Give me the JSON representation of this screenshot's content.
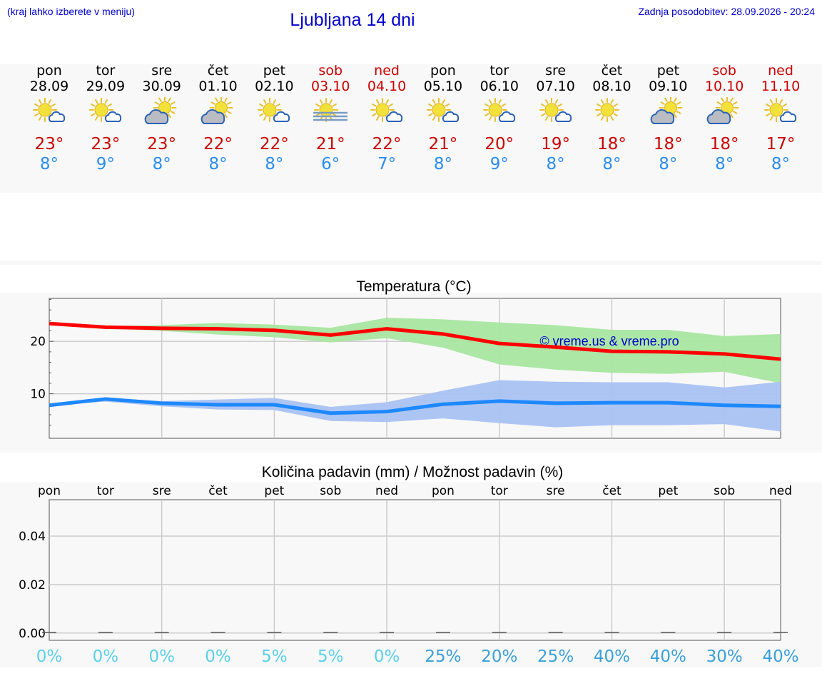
{
  "header": {
    "menu_hint": "(kraj lahko izberete v meniju)",
    "title": "Ljubljana 14 dni",
    "last_update": "Zadnja posodobitev: 28.09.2026 - 20:24"
  },
  "colors": {
    "link_blue": "#0000cc",
    "weekend_red": "#cc0000",
    "tmax_red": "#cc0000",
    "tmin_blue": "#2a8cf0",
    "max_line": "#ff0000",
    "min_line": "#1e88ff",
    "max_band": "#a8e6a0",
    "min_band": "#a9c2f2",
    "pct_low": "#5ad0e8",
    "pct_high": "#3a9fd8"
  },
  "days": [
    {
      "name": "pon",
      "date": "28.09",
      "weekend": false,
      "icon": "sun-cloud-icon",
      "tmax": "23°",
      "tmin": "8°"
    },
    {
      "name": "tor",
      "date": "29.09",
      "weekend": false,
      "icon": "sun-cloud-icon",
      "tmax": "23°",
      "tmin": "9°"
    },
    {
      "name": "sre",
      "date": "30.09",
      "weekend": false,
      "icon": "partly-cloudy-icon",
      "tmax": "23°",
      "tmin": "8°"
    },
    {
      "name": "čet",
      "date": "01.10",
      "weekend": false,
      "icon": "partly-cloudy-icon",
      "tmax": "22°",
      "tmin": "8°"
    },
    {
      "name": "pet",
      "date": "02.10",
      "weekend": false,
      "icon": "sun-cloud-icon",
      "tmax": "22°",
      "tmin": "8°"
    },
    {
      "name": "sob",
      "date": "03.10",
      "weekend": true,
      "icon": "sun-fog-icon",
      "tmax": "21°",
      "tmin": "6°"
    },
    {
      "name": "ned",
      "date": "04.10",
      "weekend": true,
      "icon": "sun-cloud-icon",
      "tmax": "22°",
      "tmin": "7°"
    },
    {
      "name": "pon",
      "date": "05.10",
      "weekend": false,
      "icon": "sun-cloud-icon",
      "tmax": "21°",
      "tmin": "8°"
    },
    {
      "name": "tor",
      "date": "06.10",
      "weekend": false,
      "icon": "sun-cloud-icon",
      "tmax": "20°",
      "tmin": "9°"
    },
    {
      "name": "sre",
      "date": "07.10",
      "weekend": false,
      "icon": "sun-cloud-icon",
      "tmax": "19°",
      "tmin": "8°"
    },
    {
      "name": "čet",
      "date": "08.10",
      "weekend": false,
      "icon": "sun-icon",
      "tmax": "18°",
      "tmin": "8°"
    },
    {
      "name": "pet",
      "date": "09.10",
      "weekend": false,
      "icon": "partly-cloudy-icon",
      "tmax": "18°",
      "tmin": "8°"
    },
    {
      "name": "sob",
      "date": "10.10",
      "weekend": true,
      "icon": "partly-cloudy-icon",
      "tmax": "18°",
      "tmin": "8°"
    },
    {
      "name": "ned",
      "date": "11.10",
      "weekend": true,
      "icon": "sun-cloud-icon",
      "tmax": "17°",
      "tmin": "8°"
    }
  ],
  "chart_data": [
    {
      "type": "line",
      "title": "Temperatura (°C)",
      "x": [
        0,
        1,
        2,
        3,
        4,
        5,
        6,
        7,
        8,
        9,
        10,
        11,
        12,
        13
      ],
      "ylim": [
        1.5,
        28.2
      ],
      "yticks": [
        10,
        20
      ],
      "grid": true,
      "annotation": "© vreme.us & vreme.pro",
      "series": [
        {
          "values": [
            23.4,
            22.7,
            22.5,
            22.4,
            22.1,
            21.2,
            22.4,
            21.4,
            19.6,
            18.9,
            18.1,
            18.0,
            17.6,
            16.6
          ],
          "band_upper": [
            23.4,
            22.9,
            23.1,
            23.5,
            23.2,
            22.6,
            24.5,
            24.2,
            23.6,
            23.1,
            22.2,
            22.2,
            21.0,
            21.4
          ],
          "band_lower": [
            23.4,
            22.5,
            22.0,
            21.3,
            20.8,
            19.8,
            20.6,
            18.8,
            15.6,
            14.6,
            14.0,
            13.8,
            14.2,
            12.0
          ]
        },
        {
          "values": [
            7.8,
            9.0,
            8.2,
            7.9,
            7.9,
            6.3,
            6.6,
            8.0,
            8.6,
            8.2,
            8.3,
            8.3,
            7.8,
            7.6
          ],
          "band_upper": [
            7.8,
            9.2,
            8.6,
            8.9,
            9.2,
            7.5,
            8.4,
            10.6,
            12.6,
            12.3,
            12.2,
            12.2,
            11.2,
            12.3
          ],
          "band_lower": [
            7.8,
            8.5,
            7.6,
            7.0,
            6.9,
            4.8,
            4.6,
            5.3,
            4.4,
            3.6,
            4.0,
            4.0,
            4.2,
            2.8
          ]
        }
      ]
    },
    {
      "type": "bar",
      "title": "Količina padavin (mm) / Možnost padavin (%)",
      "categories": [
        "pon",
        "tor",
        "sre",
        "čet",
        "pet",
        "sob",
        "ned",
        "pon",
        "tor",
        "sre",
        "čet",
        "pet",
        "sob",
        "ned"
      ],
      "values": [
        0,
        0,
        0,
        0,
        0,
        0,
        0,
        0,
        0,
        0,
        0,
        0,
        0,
        0
      ],
      "probability": [
        "0%",
        "0%",
        "0%",
        "0%",
        "5%",
        "5%",
        "0%",
        "25%",
        "20%",
        "25%",
        "40%",
        "40%",
        "30%",
        "40%"
      ],
      "ylim": [
        -0.003,
        0.055
      ],
      "yticks": [
        "0.00",
        "0.02",
        "0.04"
      ],
      "grid": true
    }
  ]
}
